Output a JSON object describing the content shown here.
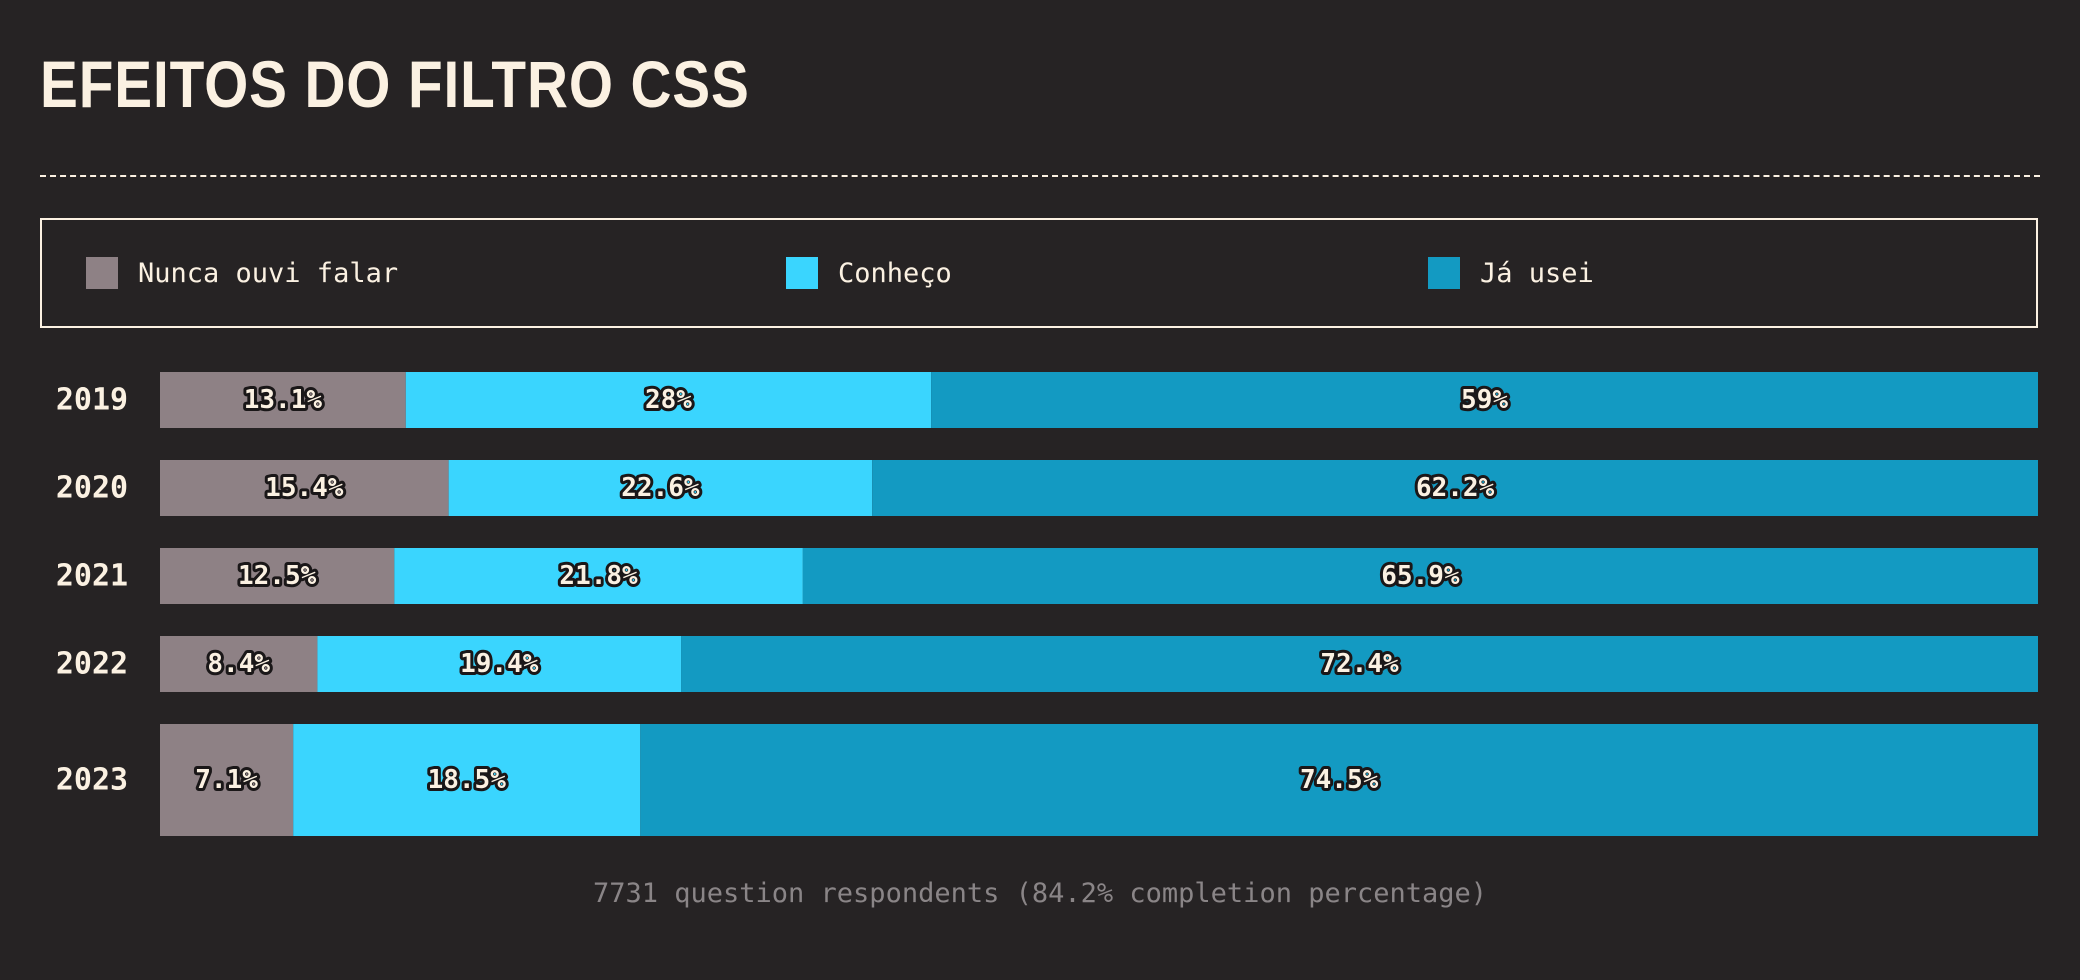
{
  "title": "EFEITOS DO FILTRO CSS",
  "legend": {
    "items": [
      {
        "label": "Nunca ouvi falar",
        "color": "#8e8185"
      },
      {
        "label": "Conheço",
        "color": "#3ad5fe"
      },
      {
        "label": "Já usei",
        "color": "#139ac2"
      }
    ]
  },
  "footer": "7731 question respondents (84.2% completion percentage)",
  "chart_data": {
    "type": "bar",
    "orientation": "horizontal",
    "stacked": true,
    "normalized": true,
    "categories": [
      "2019",
      "2020",
      "2021",
      "2022",
      "2023"
    ],
    "series": [
      {
        "name": "Nunca ouvi falar",
        "color": "#8e8185",
        "values": [
          13.1,
          15.4,
          12.5,
          8.4,
          7.1
        ],
        "labels": [
          "13.1%",
          "15.4%",
          "12.5%",
          "8.4%",
          "7.1%"
        ]
      },
      {
        "name": "Conheço",
        "color": "#3ad5fe",
        "values": [
          28,
          22.6,
          21.8,
          19.4,
          18.5
        ],
        "labels": [
          "28%",
          "22.6%",
          "21.8%",
          "19.4%",
          "18.5%"
        ]
      },
      {
        "name": "Já usei",
        "color": "#139ac2",
        "values": [
          59,
          62.2,
          65.9,
          72.4,
          74.5
        ],
        "labels": [
          "59%",
          "62.2%",
          "65.9%",
          "72.4%",
          "74.5%"
        ]
      }
    ],
    "highlighted_category": "2023",
    "legend_position": "top",
    "grid": false
  }
}
